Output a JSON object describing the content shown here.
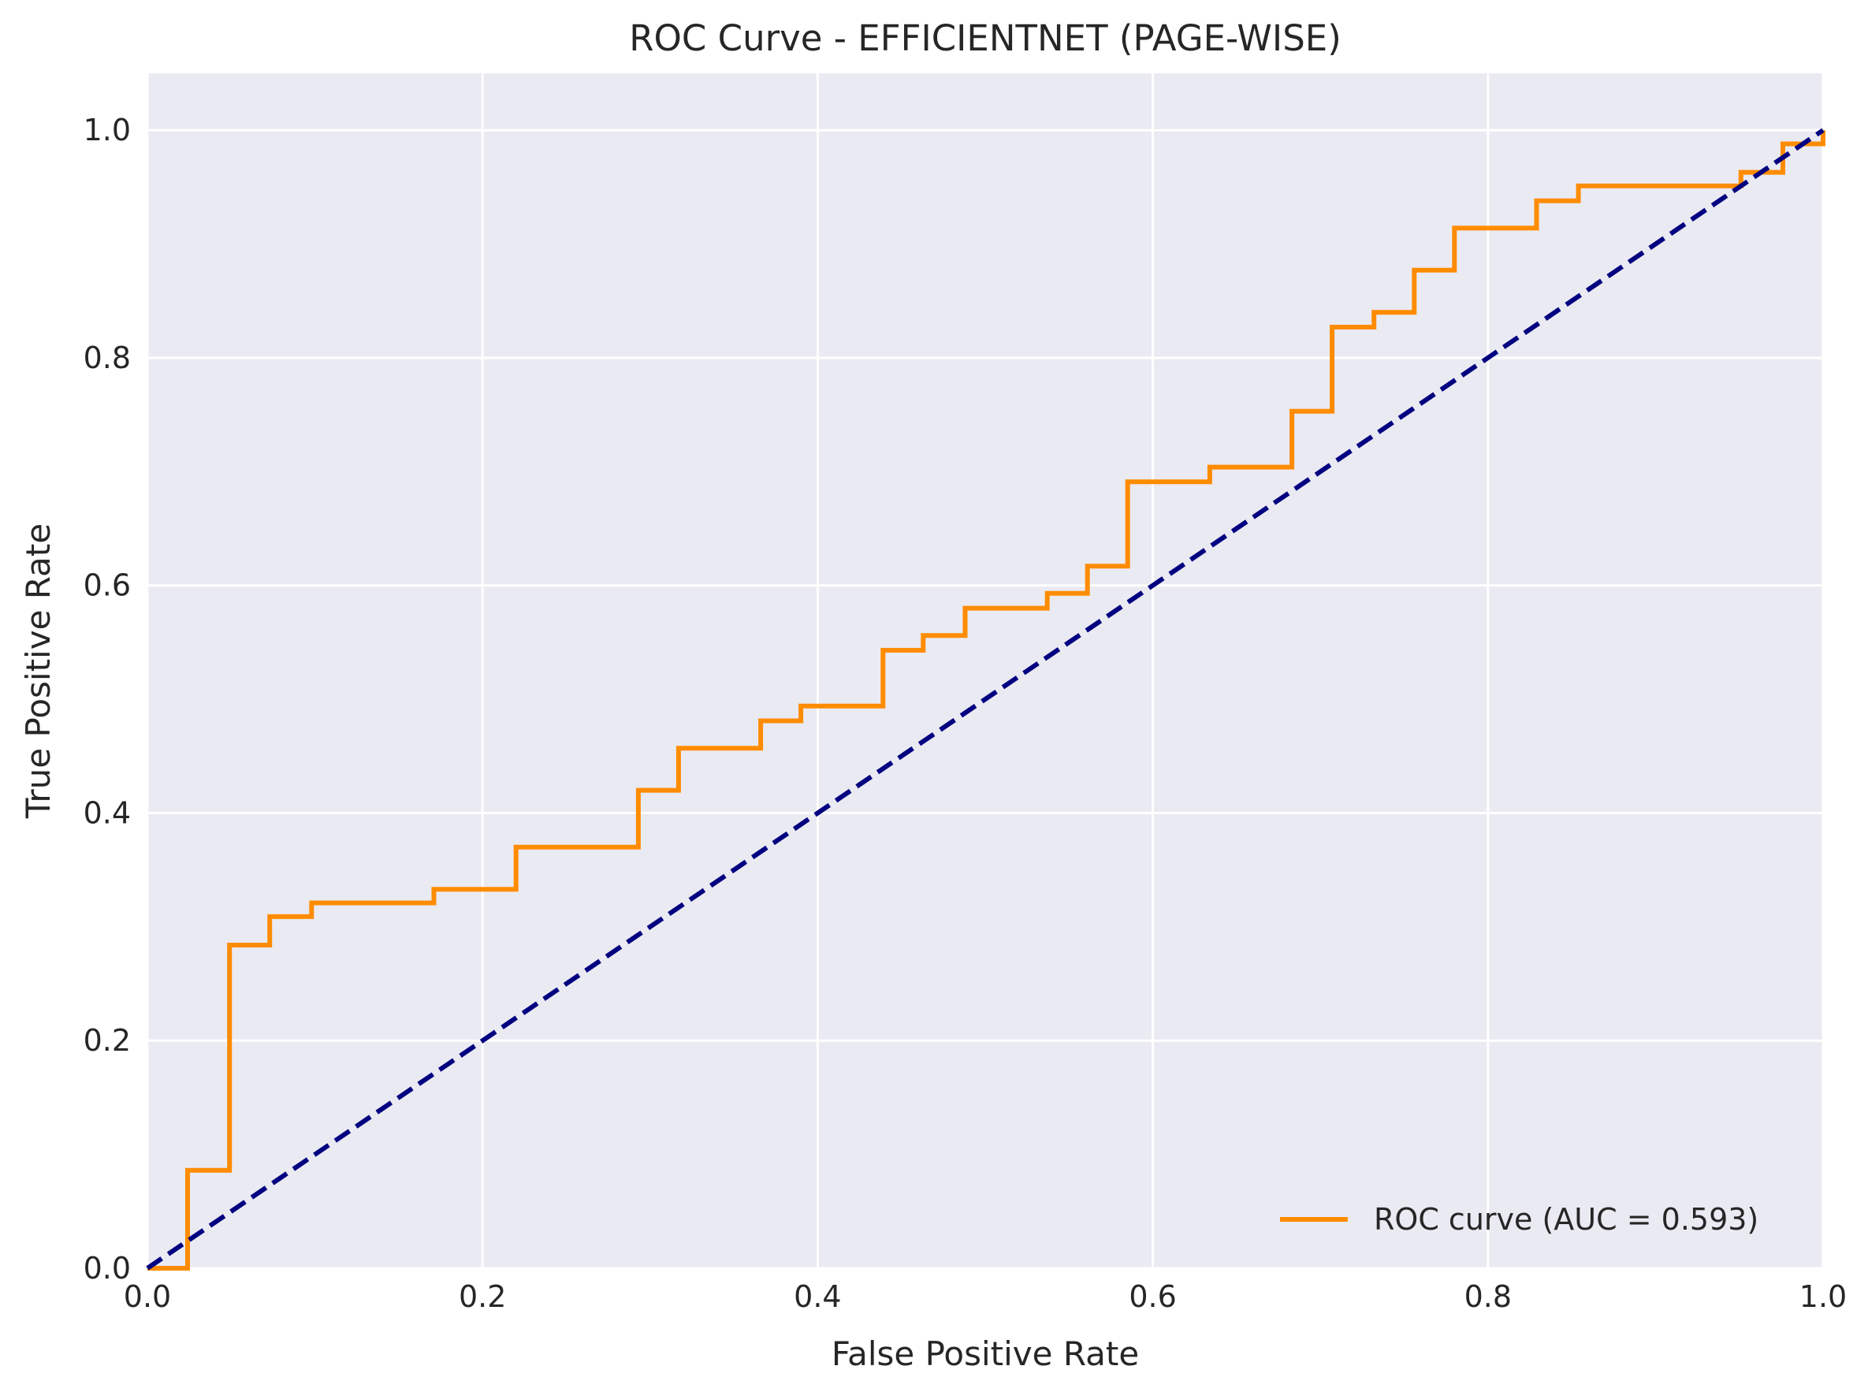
{
  "chart_data": {
    "type": "line",
    "title": "ROC Curve - EFFICIENTNET (PAGE-WISE)",
    "xlabel": "False Positive Rate",
    "ylabel": "True Positive Rate",
    "xlim": [
      0.0,
      1.0
    ],
    "ylim": [
      0.0,
      1.05
    ],
    "xticks": [
      "0.0",
      "0.2",
      "0.4",
      "0.6",
      "0.8",
      "1.0"
    ],
    "yticks": [
      "0.0",
      "0.2",
      "0.4",
      "0.6",
      "0.8",
      "1.0"
    ],
    "grid": true,
    "legend_position": "lower-right",
    "series": [
      {
        "name": "ROC curve (AUC = 0.593)",
        "color": "#ff8c00",
        "style": "solid",
        "x": [
          0.0,
          0.024,
          0.024,
          0.049,
          0.049,
          0.073,
          0.073,
          0.098,
          0.098,
          0.171,
          0.171,
          0.22,
          0.22,
          0.293,
          0.293,
          0.317,
          0.317,
          0.366,
          0.366,
          0.39,
          0.39,
          0.439,
          0.439,
          0.463,
          0.463,
          0.488,
          0.488,
          0.537,
          0.537,
          0.561,
          0.561,
          0.585,
          0.585,
          0.634,
          0.634,
          0.683,
          0.683,
          0.707,
          0.707,
          0.732,
          0.732,
          0.756,
          0.756,
          0.78,
          0.78,
          0.829,
          0.829,
          0.854,
          0.854,
          0.951,
          0.951,
          0.976,
          0.976,
          1.0,
          1.0
        ],
        "y": [
          0.0,
          0.0,
          0.086,
          0.086,
          0.284,
          0.284,
          0.309,
          0.309,
          0.321,
          0.321,
          0.333,
          0.333,
          0.37,
          0.37,
          0.42,
          0.42,
          0.457,
          0.457,
          0.481,
          0.481,
          0.494,
          0.494,
          0.543,
          0.543,
          0.556,
          0.556,
          0.58,
          0.58,
          0.593,
          0.593,
          0.617,
          0.617,
          0.691,
          0.691,
          0.704,
          0.704,
          0.753,
          0.753,
          0.827,
          0.827,
          0.84,
          0.84,
          0.877,
          0.877,
          0.914,
          0.914,
          0.938,
          0.938,
          0.951,
          0.951,
          0.963,
          0.963,
          0.988,
          0.988,
          1.0
        ]
      },
      {
        "color": "#000080",
        "style": "dashed",
        "x": [
          0.0,
          1.0
        ],
        "y": [
          0.0,
          1.0
        ]
      }
    ]
  }
}
